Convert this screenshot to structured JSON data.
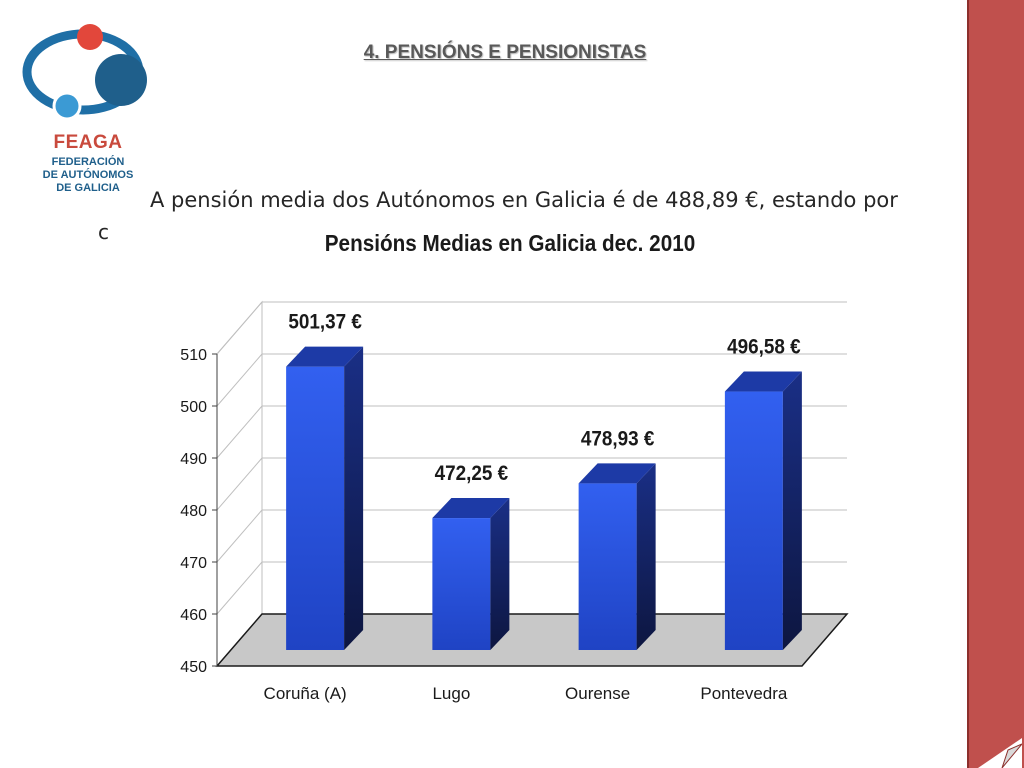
{
  "logo": {
    "name": "FEAGA",
    "sub1": "FEDERACIÓN",
    "sub2": "DE AUTÓNOMOS",
    "sub3": "DE GALICIA",
    "colors": {
      "red": "#e2473b",
      "blue": "#1f6fa6",
      "lightblue": "#3b9ad4"
    }
  },
  "slide": {
    "title": "4. PENSIÓNS E PENSIONISTAS",
    "intro": "A pensión media dos Autónomos en Galicia é de 488,89 €, estando por",
    "intro_fragment": "c"
  },
  "theme": {
    "bar_color": "#2a4fd9",
    "bar_side": "#14245f",
    "bar_top": "#1d3aa6",
    "floor": "#c8c8c8",
    "sidebar": "#c0504d"
  },
  "chart_data": {
    "type": "bar",
    "title": "Pensións Medias en Galicia dec. 2010",
    "categories": [
      "Coruña (A)",
      "Lugo",
      "Ourense",
      "Pontevedra"
    ],
    "values": [
      501.37,
      472.25,
      478.93,
      496.58
    ],
    "data_labels": [
      "501,37 €",
      "472,25 €",
      "478,93 €",
      "496,58 €"
    ],
    "ylim": [
      450,
      510
    ],
    "yticks": [
      450,
      460,
      470,
      480,
      490,
      500,
      510
    ],
    "grid": true,
    "legend": "none",
    "xlabel": "",
    "ylabel": ""
  }
}
